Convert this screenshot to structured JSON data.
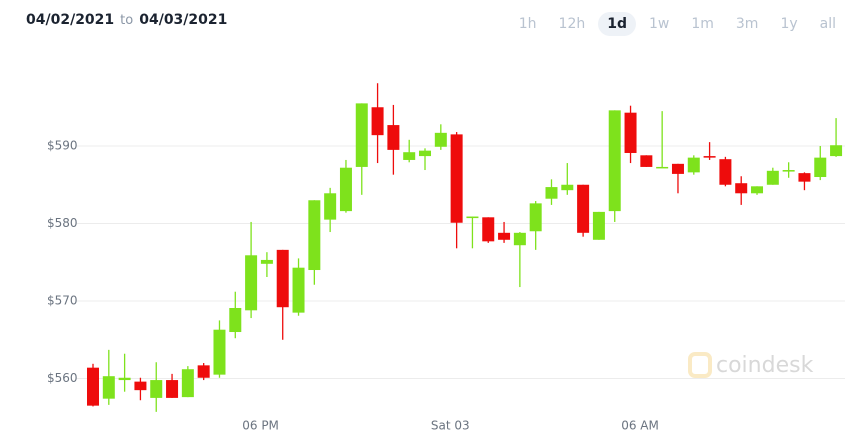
{
  "header": {
    "from": "04/02/2021",
    "to_word": "to",
    "to": "04/03/2021",
    "ranges": [
      {
        "label": "1h"
      },
      {
        "label": "12h"
      },
      {
        "label": "1d",
        "active": true
      },
      {
        "label": "1w"
      },
      {
        "label": "1m"
      },
      {
        "label": "3m"
      },
      {
        "label": "1y"
      },
      {
        "label": "all"
      }
    ]
  },
  "watermark": "coindesk",
  "chart_data": {
    "type": "candlestick",
    "open": [
      561.4,
      557.4,
      559.8,
      559.6,
      557.5,
      559.8,
      557.6,
      561.7,
      560.5,
      566.0,
      568.8,
      574.8,
      576.6,
      568.5,
      574.0,
      580.5,
      581.6,
      587.3,
      595.0,
      592.7,
      588.2,
      588.7,
      589.9,
      591.5,
      580.7,
      580.8,
      578.8,
      577.2,
      579.0,
      583.2,
      584.3,
      585.0,
      577.9,
      581.6,
      594.3,
      588.8,
      587.2,
      587.7,
      586.6,
      588.7,
      588.3,
      585.2,
      583.9,
      585.0,
      586.7,
      586.5,
      586.0,
      588.7
    ],
    "high": [
      561.9,
      563.7,
      563.2,
      560.1,
      562.1,
      560.6,
      561.6,
      562.0,
      567.5,
      571.2,
      580.2,
      576.3,
      576.6,
      575.5,
      583.0,
      584.6,
      588.2,
      595.5,
      598.1,
      595.3,
      590.8,
      589.7,
      592.8,
      591.8,
      580.9,
      580.8,
      580.2,
      578.9,
      582.9,
      585.7,
      587.8,
      585.0,
      581.5,
      594.6,
      595.2,
      588.8,
      594.5,
      587.7,
      588.8,
      590.5,
      588.6,
      586.1,
      584.8,
      587.2,
      587.9,
      586.6,
      590.0,
      593.6
    ],
    "low": [
      556.4,
      556.6,
      558.3,
      557.2,
      555.7,
      557.5,
      557.6,
      559.8,
      560.1,
      565.2,
      567.8,
      573.1,
      565.0,
      568.1,
      572.1,
      578.9,
      581.4,
      583.7,
      587.8,
      586.3,
      587.9,
      586.9,
      589.5,
      576.8,
      576.8,
      577.5,
      577.5,
      571.8,
      576.6,
      582.4,
      583.7,
      578.3,
      577.9,
      580.2,
      587.8,
      587.3,
      587.2,
      583.9,
      586.3,
      588.2,
      584.8,
      582.4,
      583.7,
      585.0,
      585.9,
      584.3,
      585.6,
      588.6
    ],
    "close": [
      556.5,
      560.3,
      560.1,
      558.5,
      559.8,
      557.5,
      561.2,
      560.1,
      566.3,
      569.1,
      575.9,
      575.3,
      569.2,
      574.3,
      583.0,
      583.9,
      587.2,
      595.5,
      591.4,
      589.5,
      589.2,
      589.4,
      591.7,
      580.1,
      580.9,
      577.7,
      577.9,
      578.8,
      582.6,
      584.7,
      585.0,
      578.8,
      581.5,
      594.6,
      589.1,
      587.3,
      587.3,
      586.4,
      588.5,
      588.5,
      585.0,
      583.9,
      584.8,
      586.8,
      586.9,
      585.4,
      588.5,
      590.1
    ],
    "up_color": "#7ee21c",
    "down_color": "#ee0c0c",
    "xticks": [
      {
        "value": 10.6,
        "label": "06 PM"
      },
      {
        "value": 22.6,
        "label": "Sat 03"
      },
      {
        "value": 34.6,
        "label": "06 AM"
      }
    ],
    "ylim": [
      555.5,
      601
    ],
    "yticks": [
      {
        "value": 560,
        "label": "$560"
      },
      {
        "value": 570,
        "label": "$570"
      },
      {
        "value": 580,
        "label": "$580"
      },
      {
        "value": 590,
        "label": "$590"
      }
    ],
    "grid": true
  }
}
